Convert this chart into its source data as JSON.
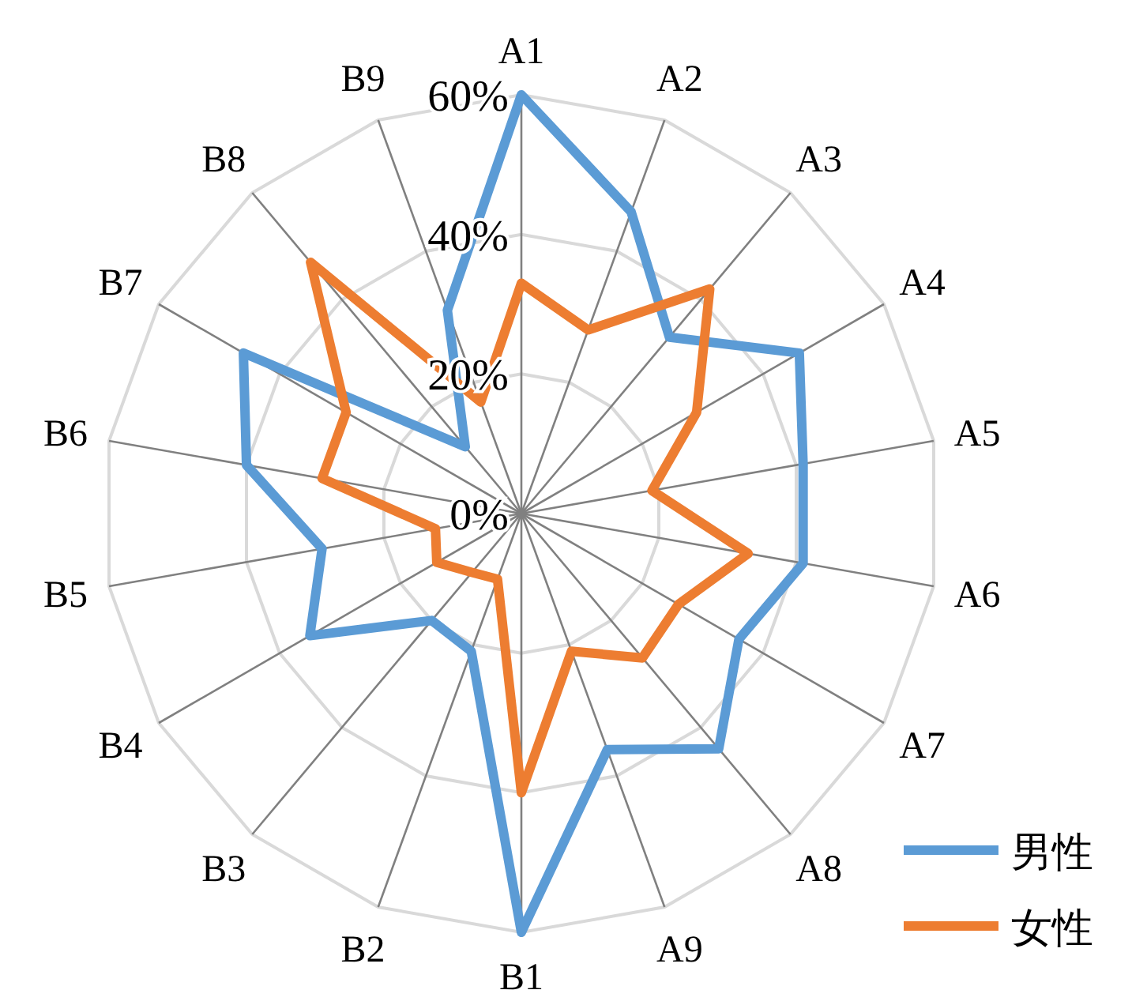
{
  "chart_data": {
    "type": "radar",
    "categories": [
      "A1",
      "A2",
      "A3",
      "A4",
      "A5",
      "A6",
      "A7",
      "A8",
      "A9",
      "B1",
      "B2",
      "B3",
      "B4",
      "B5",
      "B6",
      "B7",
      "B8",
      "B9"
    ],
    "series": [
      {
        "name": "男性",
        "color": "#5b9bd5",
        "values": [
          60,
          46,
          33,
          46,
          41,
          41,
          36,
          44,
          36,
          60,
          21,
          20,
          35,
          29,
          40,
          46,
          12.5,
          31
        ]
      },
      {
        "name": "女性",
        "color": "#ed7d31",
        "values": [
          33,
          28,
          42,
          29,
          19,
          33,
          26,
          27,
          21,
          40,
          10,
          11,
          14,
          12.5,
          29,
          29,
          47,
          17
        ]
      }
    ],
    "ylim": [
      0,
      60
    ],
    "yticks": [
      {
        "value": 0,
        "label": "0%"
      },
      {
        "value": 20,
        "label": "20%"
      },
      {
        "value": 40,
        "label": "40%"
      },
      {
        "value": 60,
        "label": "60%"
      }
    ],
    "grid": true,
    "legend": "bottom right"
  }
}
